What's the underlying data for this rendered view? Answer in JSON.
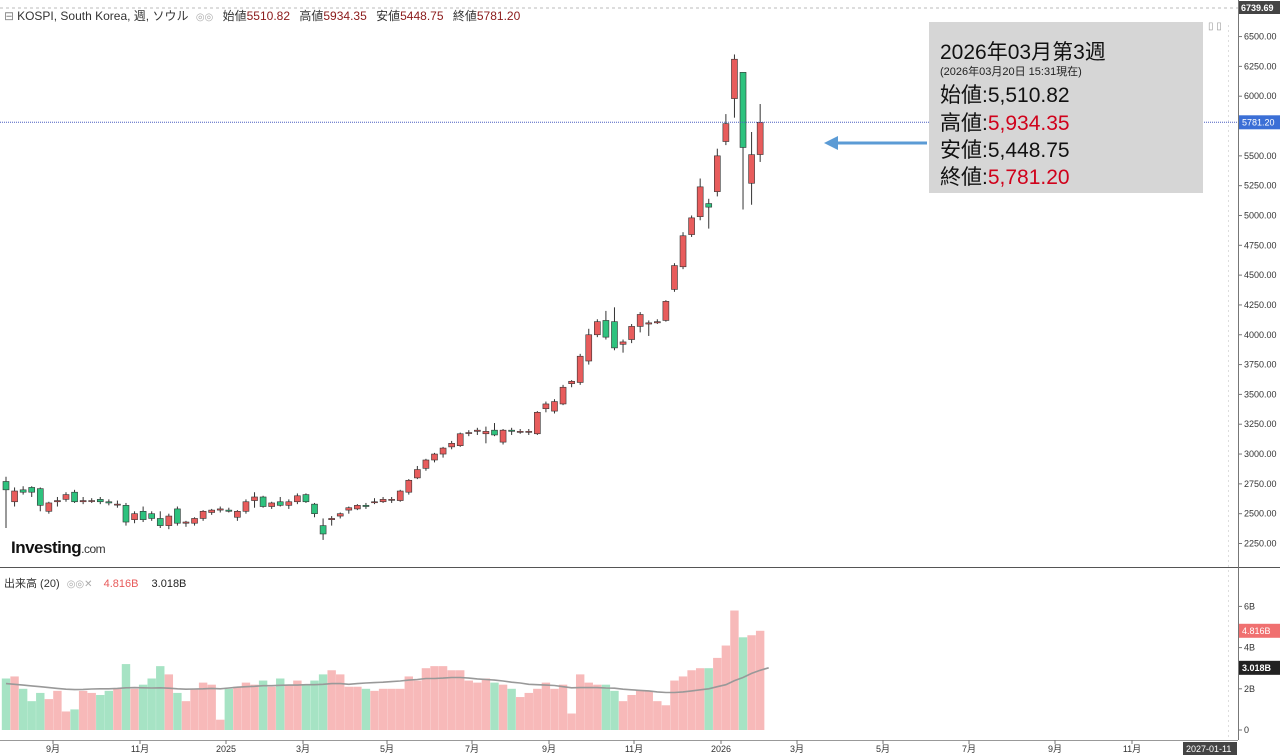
{
  "header": {
    "instrument": "KOSPI, South Korea, 週, ソウル",
    "open_label": "始値",
    "open_value": "5510.82",
    "high_label": "高値",
    "high_value": "5934.35",
    "low_label": "安値",
    "low_value": "5448.75",
    "close_label": "終値",
    "close_value": "5781.20"
  },
  "volume_header": {
    "label": "出来高 (20)",
    "volume": "4.816B",
    "ma": "3.018B"
  },
  "logo": {
    "name": "Investing",
    "suffix": ".com"
  },
  "infobox": {
    "title": "2026年03月第3週",
    "subtitle": "(2026年03月20日 15:31現在)",
    "rows": [
      {
        "label": "始値",
        "value": "5,510.82",
        "highlight": false
      },
      {
        "label": "高値",
        "value": "5,934.35",
        "highlight": true
      },
      {
        "label": "安値",
        "value": "5,448.75",
        "highlight": false
      },
      {
        "label": "終値",
        "value": "5,781.20",
        "highlight": true
      }
    ]
  },
  "colors": {
    "up": "#e85c5c",
    "down": "#2ec27e",
    "vol_up": "#f7b9b9",
    "vol_down": "#a6e3c4",
    "ma": "#999999",
    "arrow": "#5b9bd5"
  },
  "chart_data": {
    "type": "candlestick",
    "y_ticks": [
      2250,
      2500,
      2750,
      3000,
      3250,
      3500,
      3750,
      4000,
      4250,
      4500,
      4750,
      5000,
      5250,
      5500,
      5750,
      6000,
      6250,
      6500
    ],
    "y_top_label": "6739.69",
    "current_price_label": "5781.20",
    "x_tick_labels": [
      "9月",
      "11月",
      "2025",
      "3月",
      "5月",
      "7月",
      "9月",
      "11月",
      "2026",
      "3月",
      "5月",
      "7月",
      "9月",
      "11月"
    ],
    "x_end_label": "2027-01-11",
    "volume_ticks": [
      "0",
      "2B",
      "4B",
      "6B"
    ],
    "volume_current_label": "4.816B",
    "volume_ma_label": "3.018B",
    "candles": [
      {
        "o": 2770,
        "h": 2810,
        "l": 2380,
        "c": 2700,
        "v": 2.5
      },
      {
        "o": 2600,
        "h": 2720,
        "l": 2560,
        "c": 2690,
        "v": 2.6
      },
      {
        "o": 2700,
        "h": 2730,
        "l": 2660,
        "c": 2680,
        "v": 2.0
      },
      {
        "o": 2720,
        "h": 2730,
        "l": 2640,
        "c": 2680,
        "v": 1.4
      },
      {
        "o": 2710,
        "h": 2720,
        "l": 2520,
        "c": 2570,
        "v": 1.8
      },
      {
        "o": 2520,
        "h": 2600,
        "l": 2500,
        "c": 2590,
        "v": 1.5
      },
      {
        "o": 2600,
        "h": 2640,
        "l": 2560,
        "c": 2610,
        "v": 1.9
      },
      {
        "o": 2620,
        "h": 2680,
        "l": 2600,
        "c": 2660,
        "v": 0.9
      },
      {
        "o": 2680,
        "h": 2700,
        "l": 2590,
        "c": 2600,
        "v": 1.0
      },
      {
        "o": 2600,
        "h": 2640,
        "l": 2580,
        "c": 2610,
        "v": 1.9
      },
      {
        "o": 2610,
        "h": 2630,
        "l": 2590,
        "c": 2610,
        "v": 1.8
      },
      {
        "o": 2620,
        "h": 2640,
        "l": 2580,
        "c": 2600,
        "v": 1.7
      },
      {
        "o": 2600,
        "h": 2620,
        "l": 2570,
        "c": 2590,
        "v": 1.9
      },
      {
        "o": 2580,
        "h": 2610,
        "l": 2550,
        "c": 2580,
        "v": 2.0
      },
      {
        "o": 2570,
        "h": 2590,
        "l": 2400,
        "c": 2430,
        "v": 3.2
      },
      {
        "o": 2450,
        "h": 2520,
        "l": 2420,
        "c": 2500,
        "v": 2.0
      },
      {
        "o": 2520,
        "h": 2560,
        "l": 2430,
        "c": 2450,
        "v": 2.2
      },
      {
        "o": 2500,
        "h": 2520,
        "l": 2440,
        "c": 2460,
        "v": 2.5
      },
      {
        "o": 2460,
        "h": 2520,
        "l": 2380,
        "c": 2400,
        "v": 3.1
      },
      {
        "o": 2400,
        "h": 2500,
        "l": 2370,
        "c": 2480,
        "v": 2.7
      },
      {
        "o": 2540,
        "h": 2560,
        "l": 2400,
        "c": 2420,
        "v": 1.8
      },
      {
        "o": 2420,
        "h": 2440,
        "l": 2390,
        "c": 2430,
        "v": 1.4
      },
      {
        "o": 2420,
        "h": 2470,
        "l": 2400,
        "c": 2460,
        "v": 2.0
      },
      {
        "o": 2460,
        "h": 2530,
        "l": 2440,
        "c": 2520,
        "v": 2.3
      },
      {
        "o": 2510,
        "h": 2540,
        "l": 2490,
        "c": 2530,
        "v": 2.2
      },
      {
        "o": 2530,
        "h": 2560,
        "l": 2510,
        "c": 2540,
        "v": 0.5
      },
      {
        "o": 2530,
        "h": 2550,
        "l": 2510,
        "c": 2520,
        "v": 2.0
      },
      {
        "o": 2470,
        "h": 2530,
        "l": 2440,
        "c": 2520,
        "v": 2.1
      },
      {
        "o": 2520,
        "h": 2620,
        "l": 2500,
        "c": 2600,
        "v": 2.3
      },
      {
        "o": 2610,
        "h": 2680,
        "l": 2550,
        "c": 2640,
        "v": 2.2
      },
      {
        "o": 2640,
        "h": 2650,
        "l": 2550,
        "c": 2560,
        "v": 2.4
      },
      {
        "o": 2560,
        "h": 2600,
        "l": 2540,
        "c": 2590,
        "v": 2.1
      },
      {
        "o": 2600,
        "h": 2640,
        "l": 2560,
        "c": 2570,
        "v": 2.5
      },
      {
        "o": 2570,
        "h": 2620,
        "l": 2540,
        "c": 2600,
        "v": 2.2
      },
      {
        "o": 2600,
        "h": 2670,
        "l": 2580,
        "c": 2650,
        "v": 2.4
      },
      {
        "o": 2660,
        "h": 2670,
        "l": 2590,
        "c": 2600,
        "v": 2.2
      },
      {
        "o": 2580,
        "h": 2590,
        "l": 2470,
        "c": 2500,
        "v": 2.4
      },
      {
        "o": 2400,
        "h": 2460,
        "l": 2280,
        "c": 2330,
        "v": 2.7
      },
      {
        "o": 2450,
        "h": 2480,
        "l": 2400,
        "c": 2460,
        "v": 2.9
      },
      {
        "o": 2480,
        "h": 2510,
        "l": 2460,
        "c": 2500,
        "v": 2.7
      },
      {
        "o": 2530,
        "h": 2560,
        "l": 2500,
        "c": 2550,
        "v": 2.1
      },
      {
        "o": 2540,
        "h": 2580,
        "l": 2530,
        "c": 2570,
        "v": 2.1
      },
      {
        "o": 2570,
        "h": 2590,
        "l": 2540,
        "c": 2560,
        "v": 2.0
      },
      {
        "o": 2600,
        "h": 2630,
        "l": 2580,
        "c": 2600,
        "v": 1.9
      },
      {
        "o": 2600,
        "h": 2640,
        "l": 2590,
        "c": 2620,
        "v": 2.0
      },
      {
        "o": 2620,
        "h": 2640,
        "l": 2590,
        "c": 2620,
        "v": 2.0
      },
      {
        "o": 2610,
        "h": 2700,
        "l": 2600,
        "c": 2690,
        "v": 2.0
      },
      {
        "o": 2680,
        "h": 2790,
        "l": 2660,
        "c": 2780,
        "v": 2.6
      },
      {
        "o": 2800,
        "h": 2900,
        "l": 2790,
        "c": 2870,
        "v": 2.4
      },
      {
        "o": 2880,
        "h": 2960,
        "l": 2860,
        "c": 2950,
        "v": 3.0
      },
      {
        "o": 2950,
        "h": 3010,
        "l": 2930,
        "c": 3000,
        "v": 3.1
      },
      {
        "o": 3000,
        "h": 3060,
        "l": 2970,
        "c": 3050,
        "v": 3.1
      },
      {
        "o": 3060,
        "h": 3110,
        "l": 3040,
        "c": 3090,
        "v": 2.9
      },
      {
        "o": 3070,
        "h": 3180,
        "l": 3060,
        "c": 3170,
        "v": 2.9
      },
      {
        "o": 3180,
        "h": 3200,
        "l": 3150,
        "c": 3180,
        "v": 2.4
      },
      {
        "o": 3190,
        "h": 3220,
        "l": 3160,
        "c": 3200,
        "v": 2.3
      },
      {
        "o": 3170,
        "h": 3230,
        "l": 3090,
        "c": 3190,
        "v": 2.5
      },
      {
        "o": 3200,
        "h": 3260,
        "l": 3150,
        "c": 3160,
        "v": 2.3
      },
      {
        "o": 3100,
        "h": 3210,
        "l": 3080,
        "c": 3200,
        "v": 2.2
      },
      {
        "o": 3200,
        "h": 3220,
        "l": 3160,
        "c": 3190,
        "v": 2.0
      },
      {
        "o": 3190,
        "h": 3210,
        "l": 3170,
        "c": 3190,
        "v": 1.6
      },
      {
        "o": 3190,
        "h": 3210,
        "l": 3160,
        "c": 3190,
        "v": 1.8
      },
      {
        "o": 3170,
        "h": 3360,
        "l": 3160,
        "c": 3350,
        "v": 2.0
      },
      {
        "o": 3380,
        "h": 3440,
        "l": 3350,
        "c": 3420,
        "v": 2.3
      },
      {
        "o": 3360,
        "h": 3460,
        "l": 3340,
        "c": 3440,
        "v": 2.0
      },
      {
        "o": 3420,
        "h": 3580,
        "l": 3410,
        "c": 3560,
        "v": 2.2
      },
      {
        "o": 3590,
        "h": 3620,
        "l": 3560,
        "c": 3610,
        "v": 0.8
      },
      {
        "o": 3600,
        "h": 3840,
        "l": 3580,
        "c": 3820,
        "v": 2.7
      },
      {
        "o": 3780,
        "h": 4050,
        "l": 3750,
        "c": 4000,
        "v": 2.3
      },
      {
        "o": 4000,
        "h": 4130,
        "l": 3980,
        "c": 4110,
        "v": 2.2
      },
      {
        "o": 4120,
        "h": 4200,
        "l": 3960,
        "c": 3980,
        "v": 2.2
      },
      {
        "o": 4110,
        "h": 4230,
        "l": 3870,
        "c": 3890,
        "v": 1.9
      },
      {
        "o": 3920,
        "h": 3960,
        "l": 3850,
        "c": 3940,
        "v": 1.4
      },
      {
        "o": 3960,
        "h": 4090,
        "l": 3930,
        "c": 4070,
        "v": 1.7
      },
      {
        "o": 4070,
        "h": 4190,
        "l": 4020,
        "c": 4170,
        "v": 1.9
      },
      {
        "o": 4090,
        "h": 4120,
        "l": 3990,
        "c": 4100,
        "v": 1.9
      },
      {
        "o": 4100,
        "h": 4130,
        "l": 4090,
        "c": 4110,
        "v": 1.4
      },
      {
        "o": 4120,
        "h": 4290,
        "l": 4110,
        "c": 4280,
        "v": 1.2
      },
      {
        "o": 4380,
        "h": 4600,
        "l": 4360,
        "c": 4580,
        "v": 2.4
      },
      {
        "o": 4570,
        "h": 4860,
        "l": 4550,
        "c": 4830,
        "v": 2.6
      },
      {
        "o": 4840,
        "h": 5000,
        "l": 4820,
        "c": 4980,
        "v": 2.9
      },
      {
        "o": 4990,
        "h": 5310,
        "l": 4960,
        "c": 5240,
        "v": 3.0
      },
      {
        "o": 5100,
        "h": 5140,
        "l": 4890,
        "c": 5070,
        "v": 3.0
      },
      {
        "o": 5200,
        "h": 5560,
        "l": 5160,
        "c": 5500,
        "v": 3.5
      },
      {
        "o": 5620,
        "h": 5850,
        "l": 5590,
        "c": 5770,
        "v": 4.1
      },
      {
        "o": 5980,
        "h": 6350,
        "l": 5820,
        "c": 6310,
        "v": 5.8
      },
      {
        "o": 6200,
        "h": 6200,
        "l": 5050,
        "c": 5570,
        "v": 4.5
      },
      {
        "o": 5270,
        "h": 5700,
        "l": 5090,
        "c": 5510,
        "v": 4.6
      },
      {
        "o": 5510.82,
        "h": 5934.35,
        "l": 5448.75,
        "c": 5781.2,
        "v": 4.816
      }
    ],
    "volume_ma20": [
      2.25,
      2.22,
      2.18,
      2.14,
      2.1,
      2.06,
      2.02,
      1.98,
      1.96,
      1.97,
      1.99,
      2.0,
      2.0,
      2.02,
      2.05,
      2.06,
      2.05,
      2.04,
      2.05,
      2.03,
      2.0,
      1.98,
      1.99,
      2.0,
      2.02,
      2.0,
      2.04,
      2.08,
      2.1,
      2.12,
      2.15,
      2.15,
      2.17,
      2.18,
      2.18,
      2.2,
      2.2,
      2.22,
      2.25,
      2.25,
      2.22,
      2.25,
      2.28,
      2.3,
      2.32,
      2.35,
      2.38,
      2.42,
      2.45,
      2.5,
      2.5,
      2.52,
      2.55,
      2.55,
      2.52,
      2.48,
      2.45,
      2.42,
      2.38,
      2.32,
      2.28,
      2.22,
      2.2,
      2.18,
      2.16,
      2.1,
      2.05,
      2.06,
      2.06,
      2.06,
      2.04,
      2.03,
      1.98,
      1.95,
      1.92,
      1.9,
      1.85,
      1.82,
      1.82,
      1.85,
      1.9,
      1.95,
      2.0,
      2.1,
      2.2,
      2.4,
      2.55,
      2.75,
      2.9,
      3.018
    ]
  }
}
